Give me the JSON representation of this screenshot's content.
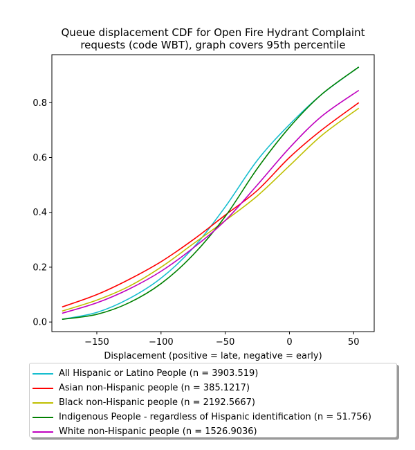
{
  "chart_data": {
    "type": "line",
    "title": "Queue displacement CDF for Open Fire Hydrant Complaint requests (code WBT), graph covers 95th percentile",
    "title_lines": [
      "Queue displacement CDF for Open Fire Hydrant Complaint",
      "requests (code WBT), graph covers 95th percentile"
    ],
    "xlabel": "Displacement (positive = late, negative = early)",
    "ylabel": "",
    "xlim": [
      -185,
      66
    ],
    "ylim": [
      -0.035,
      0.975
    ],
    "xticks": [
      -150,
      -100,
      -50,
      0,
      50
    ],
    "xtick_labels": [
      "−150",
      "−100",
      "−50",
      "0",
      "50"
    ],
    "yticks": [
      0.0,
      0.2,
      0.4,
      0.6,
      0.8
    ],
    "ytick_labels": [
      "0.0",
      "0.2",
      "0.4",
      "0.6",
      "0.8"
    ],
    "grid": false,
    "legend_position": "below",
    "series": [
      {
        "name": "All Hispanic or Latino People (n = 3903.519)",
        "color": "#17becf",
        "x": [
          -177,
          -150,
          -125,
          -100,
          -75,
          -50,
          -25,
          0,
          25,
          54
        ],
        "y": [
          0.01,
          0.035,
          0.085,
          0.16,
          0.27,
          0.42,
          0.59,
          0.72,
          0.83,
          0.93
        ]
      },
      {
        "name": "Asian non-Hispanic people (n = 385.1217)",
        "color": "#ff0000",
        "x": [
          -177,
          -150,
          -125,
          -100,
          -75,
          -50,
          -25,
          0,
          25,
          54
        ],
        "y": [
          0.055,
          0.1,
          0.155,
          0.22,
          0.3,
          0.39,
          0.48,
          0.6,
          0.7,
          0.8
        ]
      },
      {
        "name": "Black non-Hispanic people (n = 2192.5667)",
        "color": "#bfbf00",
        "x": [
          -177,
          -150,
          -125,
          -100,
          -75,
          -50,
          -25,
          0,
          25,
          54
        ],
        "y": [
          0.04,
          0.08,
          0.13,
          0.2,
          0.285,
          0.37,
          0.46,
          0.57,
          0.68,
          0.78
        ]
      },
      {
        "name": "Indigenous People - regardless of Hispanic identification (n = 51.756)",
        "color": "#008000",
        "x": [
          -177,
          -150,
          -125,
          -100,
          -75,
          -50,
          -25,
          0,
          25,
          54
        ],
        "y": [
          0.01,
          0.028,
          0.07,
          0.14,
          0.245,
          0.385,
          0.56,
          0.71,
          0.83,
          0.93
        ]
      },
      {
        "name": "White non-Hispanic people (n = 1526.9036)",
        "color": "#bf00bf",
        "x": [
          -177,
          -150,
          -125,
          -100,
          -75,
          -50,
          -25,
          0,
          25,
          54
        ],
        "y": [
          0.032,
          0.07,
          0.12,
          0.185,
          0.27,
          0.37,
          0.5,
          0.635,
          0.75,
          0.845
        ]
      }
    ]
  }
}
